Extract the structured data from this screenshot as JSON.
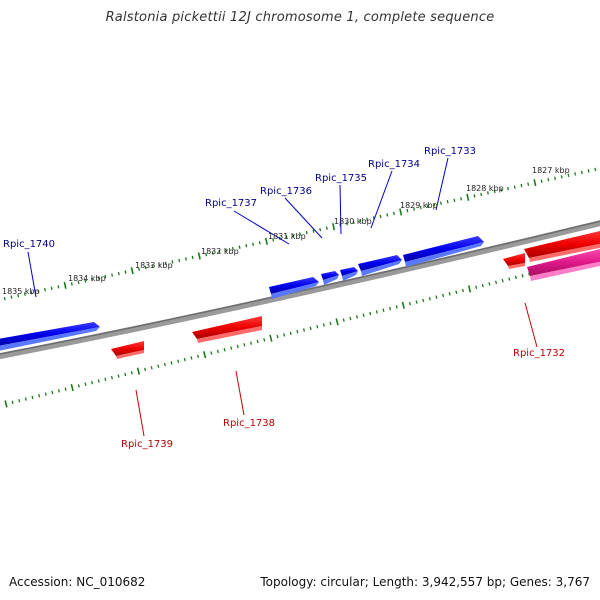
{
  "title": "Ralstonia pickettii 12J chromosome 1, complete sequence",
  "footer": {
    "accession": "Accession: NC_010682",
    "summary": "Topology: circular; Length: 3,942,557 bp; Genes: 3,767"
  },
  "colors": {
    "forward_gene": "#0000ee",
    "reverse_gene": "#ee0000",
    "reverse_gene_alt": "#e0198a",
    "backbone": "#808080",
    "tick": "#1a7a1a",
    "forward_label": "#00008b",
    "reverse_label": "#b80000",
    "kbp_label": "#222222"
  },
  "kbp_labels": [
    "1827 kbp",
    "1828 kbp",
    "1829 kbp",
    "1830 kbp",
    "1831 kbp",
    "1832 kbp",
    "1833 kbp",
    "1834 kbp",
    "1835 kbp"
  ],
  "forward_genes": [
    "Rpic_1733",
    "Rpic_1734",
    "Rpic_1735",
    "Rpic_1736",
    "Rpic_1737",
    "Rpic_1740"
  ],
  "reverse_genes": [
    "Rpic_1732",
    "Rpic_1738",
    "Rpic_1739"
  ]
}
